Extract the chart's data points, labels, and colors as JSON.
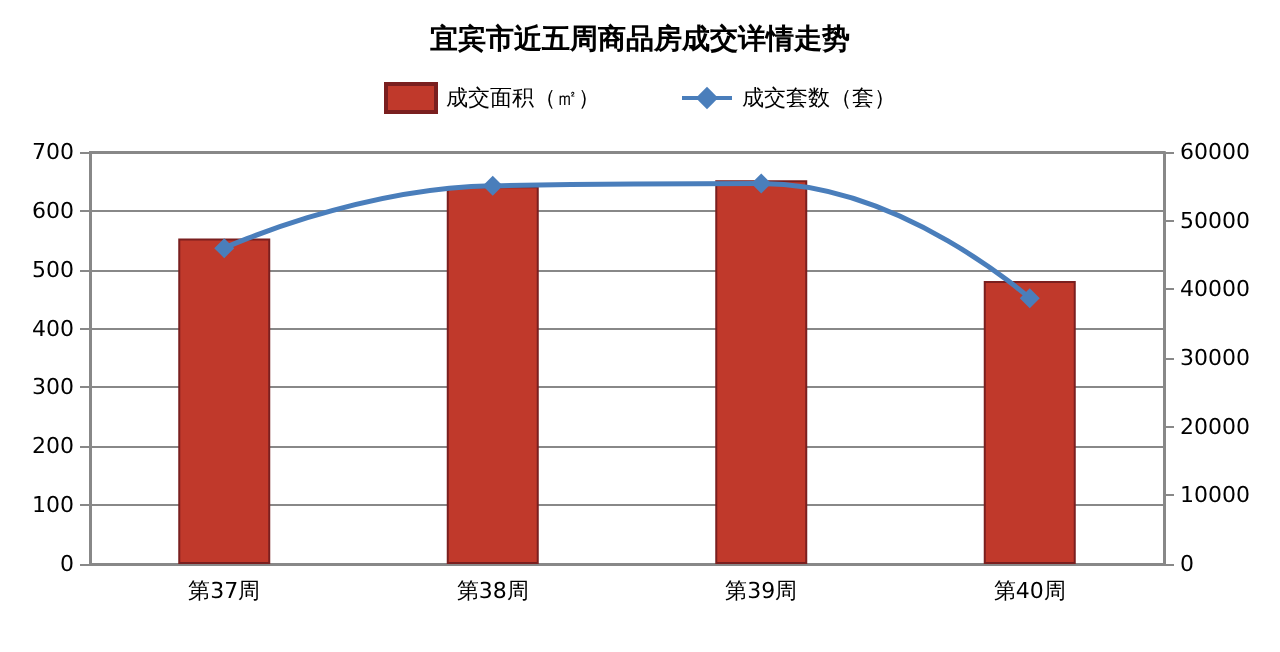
{
  "chart_data": {
    "type": "bar",
    "title": "宜宾市近五周商品房成交详情走势",
    "categories": [
      "第37周",
      "第38周",
      "第39周",
      "第40周"
    ],
    "series": [
      {
        "name": "成交面积（㎡）",
        "color": "#c0392b",
        "values": [
          553,
          642,
          652,
          481
        ]
      },
      {
        "name": "成交套数（套）",
        "type": "line",
        "axis": "y2",
        "color": "#4a7ebb",
        "values": [
          46000,
          55100,
          55400,
          38700
        ],
        "marker": "diamond",
        "line_style": "solid"
      }
    ],
    "ylim": [
      0,
      700
    ],
    "yticks": [
      0,
      100,
      200,
      300,
      400,
      500,
      600,
      700
    ],
    "y2lim": [
      0,
      60000
    ],
    "y2ticks": [
      0,
      10000,
      20000,
      30000,
      40000,
      50000,
      60000
    ],
    "grid": "y",
    "legend": "top"
  }
}
